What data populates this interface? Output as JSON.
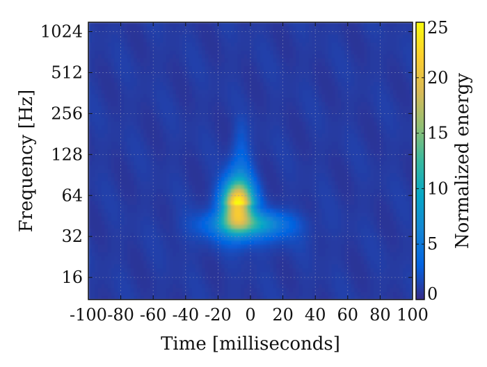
{
  "chart_data": {
    "type": "heatmap",
    "title": "",
    "xlabel": "Time [milliseconds]",
    "ylabel": "Frequency [Hz]",
    "xlim": [
      -100,
      100
    ],
    "ylim": [
      11,
      1200
    ],
    "yscale": "log2",
    "grid": true,
    "x_ticks": [
      -100,
      -80,
      -60,
      -40,
      -20,
      0,
      20,
      40,
      60,
      80,
      100
    ],
    "x_tick_labels": [
      "-100",
      "-80",
      "-60",
      "-40",
      "-20",
      "0",
      "20",
      "40",
      "60",
      "80",
      "100"
    ],
    "y_ticks": [
      16,
      32,
      64,
      128,
      256,
      512,
      1024
    ],
    "y_tick_labels": [
      "16",
      "32",
      "64",
      "128",
      "256",
      "512",
      "1024"
    ],
    "colorbar": {
      "label": "Normalized energy",
      "range": [
        0,
        25
      ],
      "ticks": [
        0,
        5,
        10,
        15,
        20,
        25
      ],
      "tick_labels": [
        "0",
        "5",
        "10",
        "15",
        "20",
        "25"
      ],
      "colormap": [
        "#352a87",
        "#0363e1",
        "#1485d4",
        "#06a7c6",
        "#38b99e",
        "#92bf73",
        "#d9ba56",
        "#fcce2e",
        "#f9fb0e"
      ]
    },
    "peak": {
      "time_ms": -8,
      "frequency_hz": 55,
      "energy": 24
    }
  }
}
